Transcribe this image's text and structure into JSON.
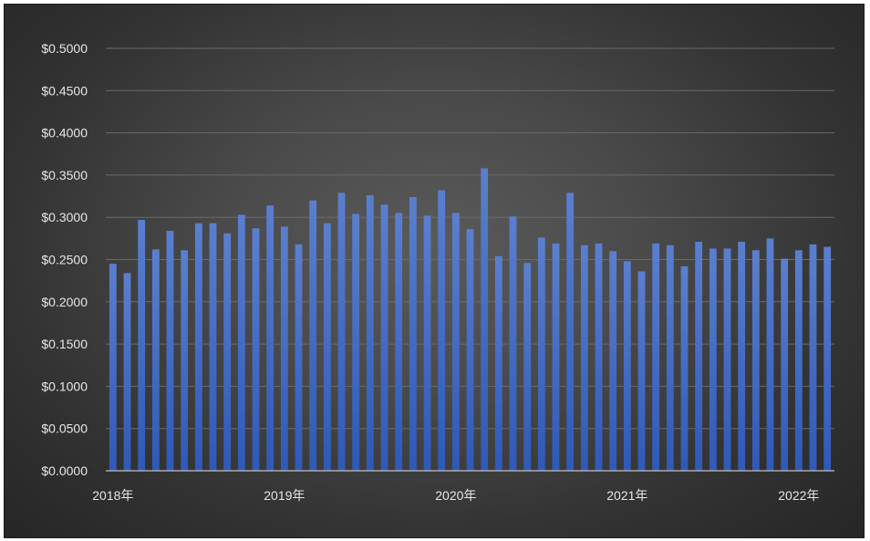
{
  "chart_data": {
    "type": "bar",
    "title": "",
    "xlabel": "",
    "ylabel": "",
    "ylim": [
      0,
      0.5
    ],
    "y_tick_values": [
      0,
      0.05,
      0.1,
      0.15,
      0.2,
      0.25,
      0.3,
      0.35,
      0.4,
      0.45,
      0.5
    ],
    "y_tick_labels": [
      "$0.0000",
      "$0.0500",
      "$0.1000",
      "$0.1500",
      "$0.2000",
      "$0.2500",
      "$0.3000",
      "$0.3500",
      "$0.4000",
      "$0.4500",
      "$0.5000"
    ],
    "x_tick_labels": [
      {
        "label": "2018年",
        "index": 0
      },
      {
        "label": "2019年",
        "index": 12
      },
      {
        "label": "2020年",
        "index": 24
      },
      {
        "label": "2021年",
        "index": 36
      },
      {
        "label": "2022年",
        "index": 48
      }
    ],
    "grid": true,
    "legend": "none",
    "bar_color_top": "#5b7fcf",
    "bar_color_bottom": "#2f59b8",
    "values": [
      0.245,
      0.234,
      0.297,
      0.262,
      0.284,
      0.261,
      0.293,
      0.293,
      0.281,
      0.303,
      0.287,
      0.314,
      0.289,
      0.268,
      0.32,
      0.293,
      0.329,
      0.304,
      0.326,
      0.315,
      0.305,
      0.324,
      0.302,
      0.332,
      0.305,
      0.286,
      0.358,
      0.254,
      0.301,
      0.246,
      0.276,
      0.269,
      0.329,
      0.267,
      0.269,
      0.26,
      0.248,
      0.236,
      0.269,
      0.267,
      0.242,
      0.271,
      0.263,
      0.263,
      0.271,
      0.261,
      0.275,
      0.251,
      0.261,
      0.268,
      0.265
    ]
  }
}
